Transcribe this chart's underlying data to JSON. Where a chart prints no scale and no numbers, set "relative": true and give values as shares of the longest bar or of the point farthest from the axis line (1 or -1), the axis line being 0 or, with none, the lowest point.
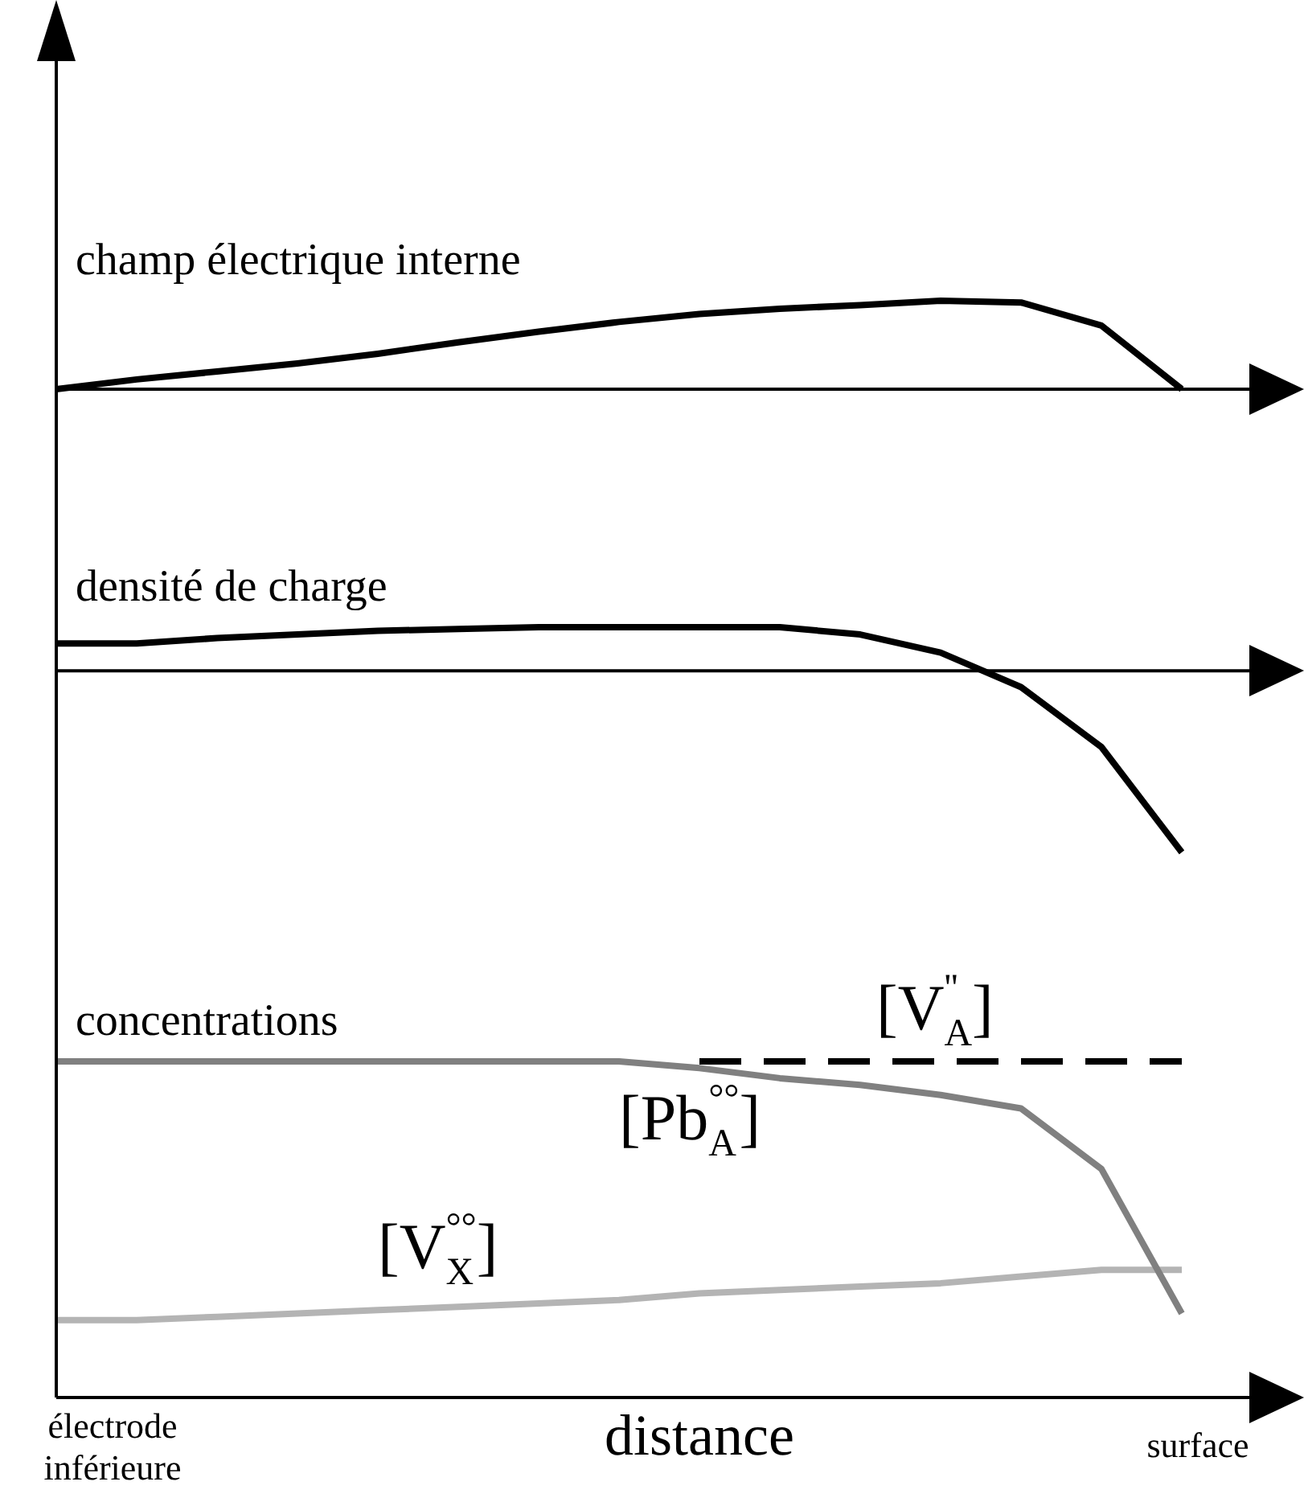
{
  "chart_data": [
    {
      "type": "line",
      "title": "champ électrique interne",
      "relative": true,
      "categories": [
        null,
        null,
        null,
        null,
        null,
        null,
        null,
        null,
        null,
        null,
        null,
        null,
        null,
        null,
        null
      ],
      "series": [
        {
          "color": "#000000",
          "values": [
            0,
            0.11,
            0.2,
            0.29,
            0.4,
            0.53,
            0.65,
            0.76,
            0.85,
            0.91,
            0.95,
            1,
            0.98,
            0.72,
            0
          ]
        }
      ]
    },
    {
      "type": "line",
      "title": "densité de charge",
      "relative": true,
      "categories": [
        null,
        null,
        null,
        null,
        null,
        null,
        null,
        null,
        null,
        null,
        null,
        null,
        null,
        null,
        null
      ],
      "series": [
        {
          "color": "#000000",
          "values": [
            0.15,
            0.15,
            0.18,
            0.2,
            0.22,
            0.23,
            0.24,
            0.24,
            0.24,
            0.24,
            0.2,
            0.1,
            -0.09,
            -0.42,
            -1
          ]
        }
      ]
    },
    {
      "type": "line",
      "title": "concentrations",
      "xlabel": "distance",
      "relative": true,
      "annotations": [
        "électrode inférieure",
        "surface"
      ],
      "categories": [
        null,
        null,
        null,
        null,
        null,
        null,
        null,
        null,
        null,
        null,
        null,
        null,
        null,
        null,
        null
      ],
      "series": [
        {
          "name": "[V$^{''}$$_{A}$]",
          "color": "#000000",
          "line_style": "dashed",
          "values": [
            null,
            null,
            null,
            null,
            null,
            null,
            null,
            null,
            1,
            1,
            1,
            1,
            1,
            1,
            1
          ]
        },
        {
          "name": "[Pb$^{°°}$$_{A}$]",
          "color": "#808080",
          "values": [
            1,
            1,
            1,
            1,
            1,
            1,
            1,
            1,
            0.98,
            0.95,
            0.93,
            0.9,
            0.86,
            0.68,
            0.25
          ]
        },
        {
          "name": "[V$^{°°}$$_{X}$]",
          "color": "#b4b4b4",
          "values": [
            0.23,
            0.23,
            0.24,
            0.25,
            0.26,
            0.27,
            0.28,
            0.29,
            0.31,
            0.32,
            0.33,
            0.34,
            0.36,
            0.38,
            0.38
          ]
        }
      ]
    }
  ]
}
